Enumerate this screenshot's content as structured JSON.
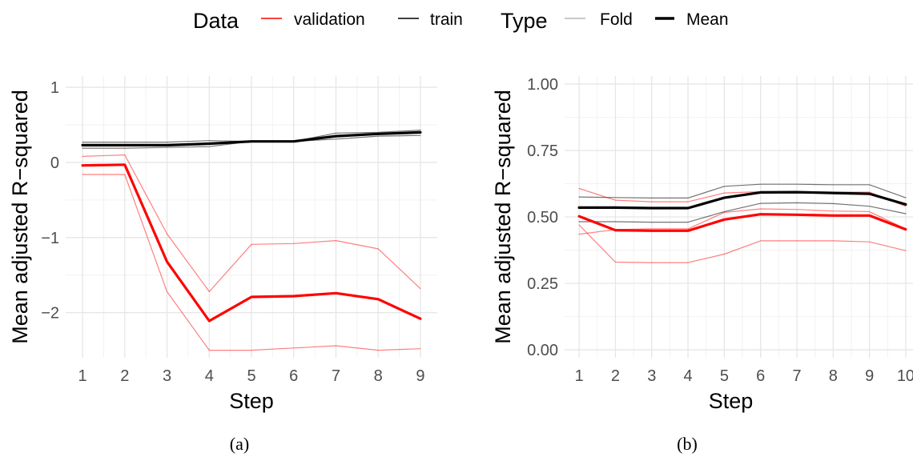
{
  "legend": {
    "data_title": "Data",
    "data_items": [
      {
        "label": "validation",
        "color": "#ff0000"
      },
      {
        "label": "train",
        "color": "#000000"
      }
    ],
    "type_title": "Type",
    "type_items": [
      {
        "label": "Fold",
        "style": "thin"
      },
      {
        "label": "Mean",
        "style": "thick"
      }
    ]
  },
  "colors": {
    "validation": "#ff0000",
    "train": "#000000",
    "grid_major": "#e6e6e6",
    "grid_minor": "#f2f2f2"
  },
  "chart_data": [
    {
      "type": "line",
      "caption": "(a)",
      "xlabel": "Step",
      "ylabel": "Mean adjusted R−squared",
      "xlim": [
        0.6,
        9.4
      ],
      "ylim": [
        -2.6,
        1.15
      ],
      "x_ticks": [
        1,
        2,
        3,
        4,
        5,
        6,
        7,
        8,
        9
      ],
      "y_ticks": [
        -2,
        -1,
        0,
        1
      ],
      "y_tick_labels": [
        "−2",
        "−1",
        "0",
        "1"
      ],
      "x": [
        1,
        2,
        3,
        4,
        5,
        6,
        7,
        8,
        9
      ],
      "series": [
        {
          "data": "train",
          "kind": "Fold",
          "values": [
            0.27,
            0.27,
            0.27,
            0.29,
            0.28,
            0.28,
            0.39,
            0.4,
            0.43
          ]
        },
        {
          "data": "train",
          "kind": "Fold",
          "values": [
            0.19,
            0.19,
            0.2,
            0.21,
            0.28,
            0.28,
            0.31,
            0.35,
            0.36
          ]
        },
        {
          "data": "train",
          "kind": "Mean",
          "values": [
            0.23,
            0.23,
            0.23,
            0.25,
            0.28,
            0.28,
            0.35,
            0.38,
            0.4
          ]
        },
        {
          "data": "validation",
          "kind": "Fold",
          "values": [
            0.08,
            0.1,
            -0.95,
            -1.72,
            -1.09,
            -1.08,
            -1.04,
            -1.15,
            -1.68
          ]
        },
        {
          "data": "validation",
          "kind": "Fold",
          "values": [
            -0.16,
            -0.16,
            -1.72,
            -2.5,
            -2.5,
            -2.47,
            -2.44,
            -2.5,
            -2.48
          ]
        },
        {
          "data": "validation",
          "kind": "Mean",
          "values": [
            -0.04,
            -0.03,
            -1.32,
            -2.11,
            -1.79,
            -1.78,
            -1.74,
            -1.82,
            -2.08
          ]
        }
      ]
    },
    {
      "type": "line",
      "caption": "(b)",
      "xlabel": "Step",
      "ylabel": "Mean adjusted R−squared",
      "xlim": [
        0.6,
        10.2
      ],
      "ylim": [
        -0.03,
        1.03
      ],
      "x_ticks": [
        1,
        2,
        3,
        4,
        5,
        6,
        7,
        8,
        9,
        10
      ],
      "y_ticks": [
        0,
        0.25,
        0.5,
        0.75,
        1
      ],
      "y_tick_labels": [
        "0.00",
        "0.25",
        "0.50",
        "0.75",
        "1.00"
      ],
      "x": [
        1,
        2,
        3,
        4,
        5,
        6,
        7,
        8,
        9,
        10
      ],
      "series": [
        {
          "data": "train",
          "kind": "Fold",
          "values": [
            0.575,
            0.573,
            0.571,
            0.571,
            0.615,
            0.623,
            0.623,
            0.621,
            0.621,
            0.572
          ]
        },
        {
          "data": "train",
          "kind": "Fold",
          "values": [
            0.482,
            0.482,
            0.48,
            0.48,
            0.52,
            0.551,
            0.553,
            0.55,
            0.54,
            0.512
          ]
        },
        {
          "data": "train",
          "kind": "Mean",
          "values": [
            0.535,
            0.535,
            0.533,
            0.533,
            0.572,
            0.592,
            0.593,
            0.59,
            0.587,
            0.547
          ]
        },
        {
          "data": "validation",
          "kind": "Fold",
          "values": [
            0.607,
            0.563,
            0.557,
            0.557,
            0.59,
            0.595,
            0.595,
            0.593,
            0.593,
            0.54
          ]
        },
        {
          "data": "validation",
          "kind": "Fold",
          "values": [
            0.435,
            0.452,
            0.455,
            0.455,
            0.517,
            0.53,
            0.528,
            0.522,
            0.52,
            0.455
          ]
        },
        {
          "data": "validation",
          "kind": "Fold",
          "values": [
            0.47,
            0.33,
            0.328,
            0.328,
            0.36,
            0.41,
            0.41,
            0.41,
            0.406,
            0.373
          ]
        },
        {
          "data": "validation",
          "kind": "Mean",
          "values": [
            0.502,
            0.45,
            0.448,
            0.448,
            0.49,
            0.51,
            0.508,
            0.505,
            0.505,
            0.453
          ]
        }
      ]
    }
  ]
}
